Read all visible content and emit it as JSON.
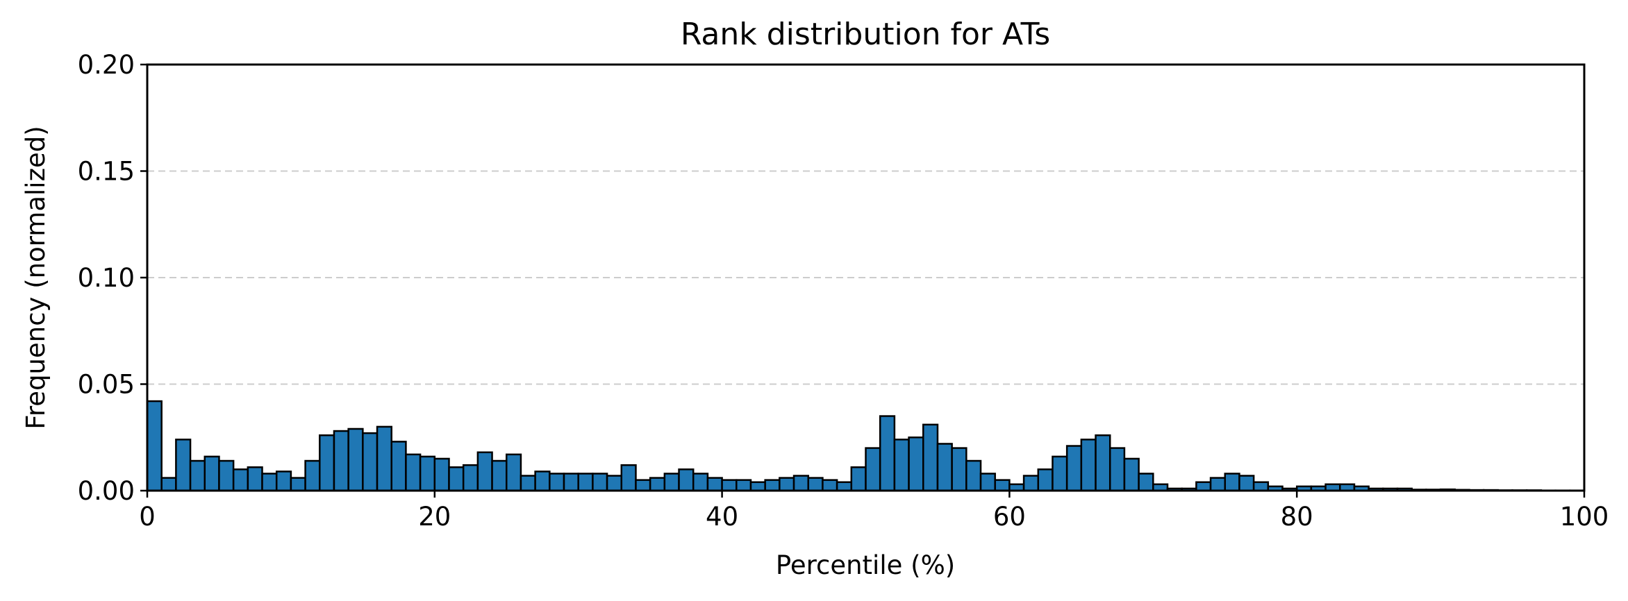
{
  "chart_data": {
    "type": "bar",
    "title": "Rank distribution for ATs",
    "xlabel": "Percentile (%)",
    "ylabel": "Frequency (normalized)",
    "xlim": [
      0,
      100
    ],
    "ylim": [
      0,
      0.2
    ],
    "x_ticks": [
      0,
      20,
      40,
      60,
      80,
      100
    ],
    "x_tick_labels": [
      "0",
      "20",
      "40",
      "60",
      "80",
      "100"
    ],
    "y_ticks": [
      0,
      0.05,
      0.1,
      0.15,
      0.2
    ],
    "y_tick_labels": [
      "0.00",
      "0.05",
      "0.10",
      "0.15",
      "0.20"
    ],
    "grid": "y-dashed",
    "bar_color": "#1f77b4",
    "bar_edge_color": "#000000",
    "grid_color": "#cccccc",
    "bin_width": 1,
    "bins_start": [
      0,
      1,
      2,
      3,
      4,
      5,
      6,
      7,
      8,
      9,
      10,
      11,
      12,
      13,
      14,
      15,
      16,
      17,
      18,
      19,
      20,
      21,
      22,
      23,
      24,
      25,
      26,
      27,
      28,
      29,
      30,
      31,
      32,
      33,
      34,
      35,
      36,
      37,
      38,
      39,
      40,
      41,
      42,
      43,
      44,
      45,
      46,
      47,
      48,
      49,
      50,
      51,
      52,
      53,
      54,
      55,
      56,
      57,
      58,
      59,
      60,
      61,
      62,
      63,
      64,
      65,
      66,
      67,
      68,
      69,
      70,
      71,
      72,
      73,
      74,
      75,
      76,
      77,
      78,
      79,
      80,
      81,
      82,
      83,
      84,
      85,
      86,
      87,
      88,
      89,
      90,
      91,
      92,
      93,
      94,
      95,
      96,
      97,
      98,
      99
    ],
    "values": [
      0.042,
      0.006,
      0.024,
      0.014,
      0.016,
      0.014,
      0.01,
      0.011,
      0.008,
      0.009,
      0.006,
      0.014,
      0.026,
      0.028,
      0.029,
      0.027,
      0.03,
      0.023,
      0.017,
      0.016,
      0.015,
      0.011,
      0.012,
      0.018,
      0.014,
      0.017,
      0.007,
      0.009,
      0.008,
      0.008,
      0.008,
      0.008,
      0.007,
      0.012,
      0.005,
      0.006,
      0.008,
      0.01,
      0.008,
      0.006,
      0.005,
      0.005,
      0.004,
      0.005,
      0.006,
      0.007,
      0.006,
      0.005,
      0.004,
      0.011,
      0.02,
      0.035,
      0.024,
      0.025,
      0.031,
      0.022,
      0.02,
      0.014,
      0.008,
      0.005,
      0.003,
      0.007,
      0.01,
      0.016,
      0.021,
      0.024,
      0.026,
      0.02,
      0.015,
      0.008,
      0.003,
      0.001,
      0.001,
      0.004,
      0.006,
      0.008,
      0.007,
      0.004,
      0.002,
      0.001,
      0.002,
      0.002,
      0.003,
      0.003,
      0.002,
      0.001,
      0.001,
      0.001,
      0.0005,
      0.0005,
      0.0006,
      0.0004,
      0.0003,
      0.0003,
      0.0002,
      0.0002,
      0.0002,
      0.0001,
      0.0001,
      0.0001
    ]
  }
}
